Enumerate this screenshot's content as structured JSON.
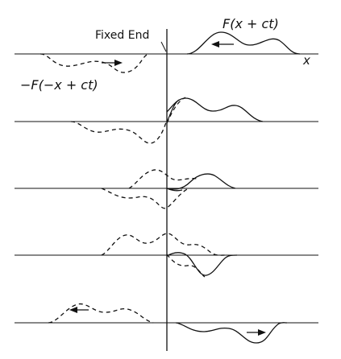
{
  "labels": {
    "fixed_end": "Fixed End",
    "incident_wave": "F(x + ct)",
    "reflected_wave": "−F(−x + ct)",
    "x_axis": "x"
  },
  "panels": [
    {
      "id": "t0",
      "solid_arrow": "left",
      "dashed_arrow": "right"
    },
    {
      "id": "t1"
    },
    {
      "id": "t2"
    },
    {
      "id": "t3"
    },
    {
      "id": "t4",
      "solid_arrow": "right",
      "dashed_arrow": "left"
    }
  ],
  "colors": {
    "line": "#111111",
    "background": "#ffffff"
  }
}
